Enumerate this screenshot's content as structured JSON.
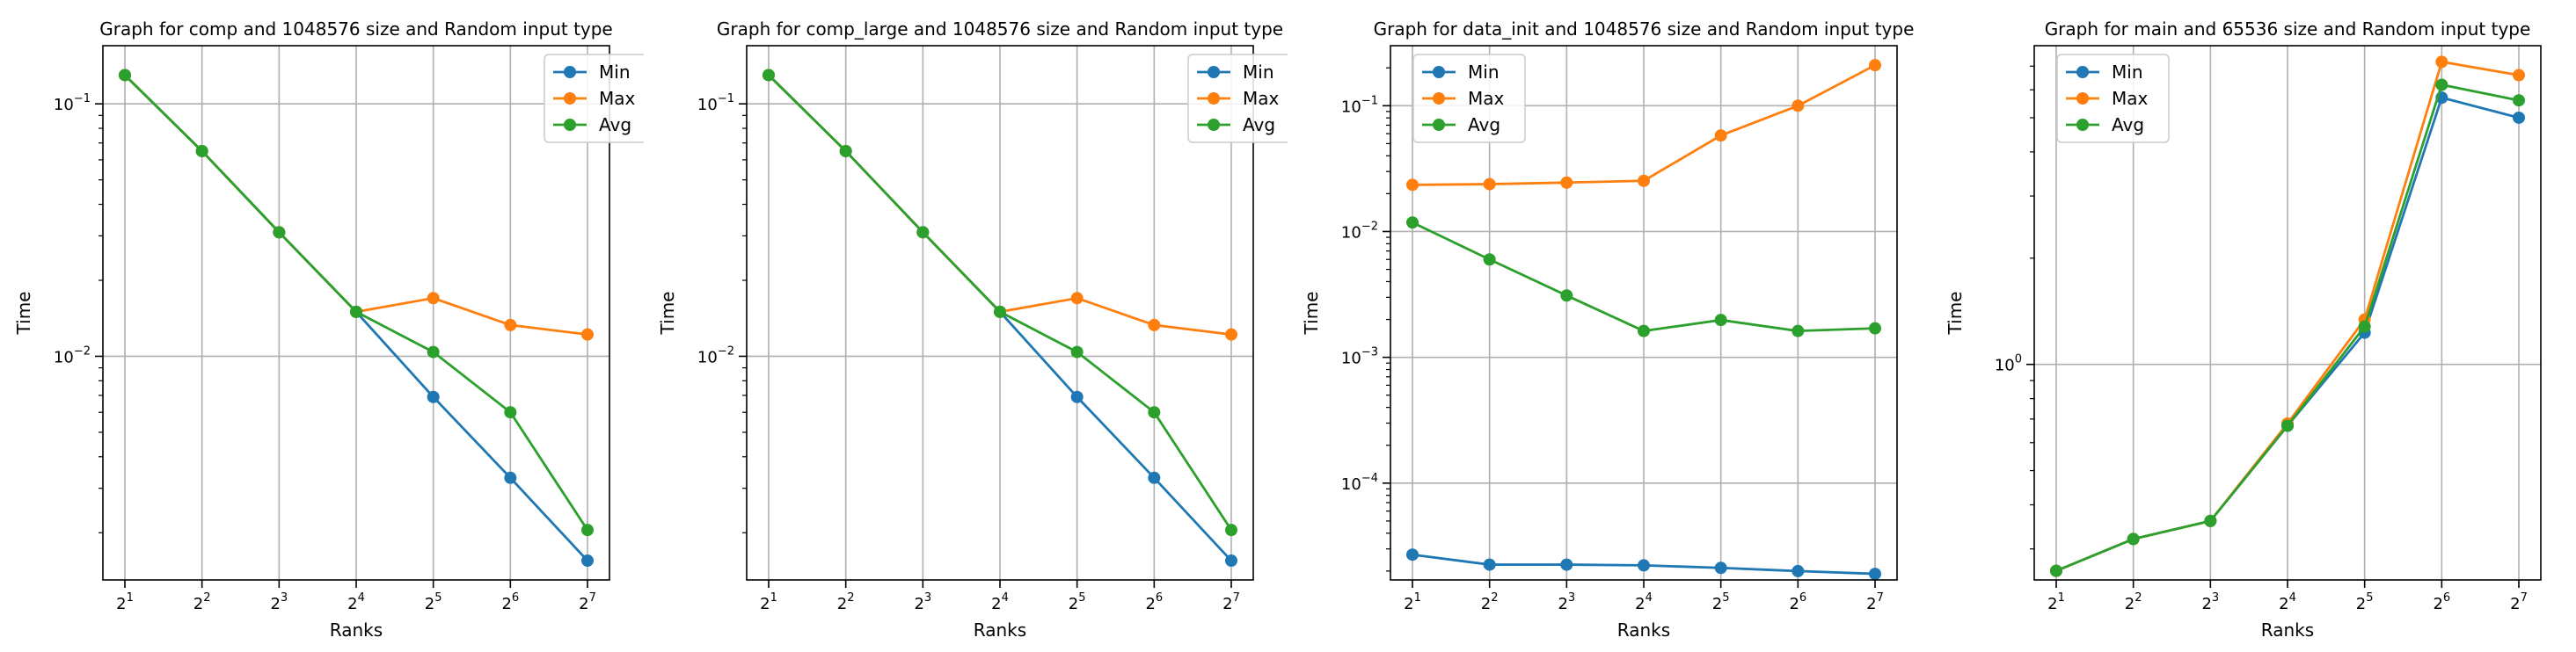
{
  "colors": {
    "min": "#1f77b4",
    "max": "#ff7f0e",
    "avg": "#2ca02c",
    "grid": "#b0b0b0"
  },
  "chart_data": [
    {
      "type": "line",
      "title": "Graph for comp and 1048576 size and Random input type",
      "xlabel": "Ranks",
      "ylabel": "Time",
      "yscale": "log",
      "ylim": [
        0.0013,
        0.17
      ],
      "grid": true,
      "legend_position": "top-right",
      "x": [
        2,
        4,
        8,
        16,
        32,
        64,
        128
      ],
      "x_tick_labels": [
        [
          "2",
          "1"
        ],
        [
          "2",
          "2"
        ],
        [
          "2",
          "3"
        ],
        [
          "2",
          "4"
        ],
        [
          "2",
          "5"
        ],
        [
          "2",
          "6"
        ],
        [
          "2",
          "7"
        ]
      ],
      "y_ticks": [
        {
          "value": 0.1,
          "base": "10",
          "exp": "−1"
        },
        {
          "value": 0.01,
          "base": "10",
          "exp": "−2"
        }
      ],
      "series": [
        {
          "name": "Min",
          "color_key": "min",
          "values": [
            0.13,
            0.065,
            0.031,
            0.015,
            0.0069,
            0.0033,
            0.00155
          ]
        },
        {
          "name": "Max",
          "color_key": "max",
          "values": [
            0.13,
            0.065,
            0.031,
            0.015,
            0.017,
            0.0133,
            0.0122
          ]
        },
        {
          "name": "Avg",
          "color_key": "avg",
          "values": [
            0.13,
            0.065,
            0.031,
            0.015,
            0.0104,
            0.006,
            0.00205
          ]
        }
      ]
    },
    {
      "type": "line",
      "title": "Graph for comp_large and 1048576 size and Random input type",
      "xlabel": "Ranks",
      "ylabel": "Time",
      "yscale": "log",
      "ylim": [
        0.0013,
        0.17
      ],
      "grid": true,
      "legend_position": "top-right",
      "x": [
        2,
        4,
        8,
        16,
        32,
        64,
        128
      ],
      "x_tick_labels": [
        [
          "2",
          "1"
        ],
        [
          "2",
          "2"
        ],
        [
          "2",
          "3"
        ],
        [
          "2",
          "4"
        ],
        [
          "2",
          "5"
        ],
        [
          "2",
          "6"
        ],
        [
          "2",
          "7"
        ]
      ],
      "y_ticks": [
        {
          "value": 0.1,
          "base": "10",
          "exp": "−1"
        },
        {
          "value": 0.01,
          "base": "10",
          "exp": "−2"
        }
      ],
      "series": [
        {
          "name": "Min",
          "color_key": "min",
          "values": [
            0.13,
            0.065,
            0.031,
            0.015,
            0.0069,
            0.0033,
            0.00155
          ]
        },
        {
          "name": "Max",
          "color_key": "max",
          "values": [
            0.13,
            0.065,
            0.031,
            0.015,
            0.017,
            0.0133,
            0.0122
          ]
        },
        {
          "name": "Avg",
          "color_key": "avg",
          "values": [
            0.13,
            0.065,
            0.031,
            0.015,
            0.0104,
            0.006,
            0.00205
          ]
        }
      ]
    },
    {
      "type": "line",
      "title": "Graph for data_init and 1048576 size and Random input type",
      "xlabel": "Ranks",
      "ylabel": "Time",
      "yscale": "log",
      "ylim": [
        1.7e-05,
        0.3
      ],
      "grid": true,
      "legend_position": "top-left",
      "x": [
        2,
        4,
        8,
        16,
        32,
        64,
        128
      ],
      "x_tick_labels": [
        [
          "2",
          "1"
        ],
        [
          "2",
          "2"
        ],
        [
          "2",
          "3"
        ],
        [
          "2",
          "4"
        ],
        [
          "2",
          "5"
        ],
        [
          "2",
          "6"
        ],
        [
          "2",
          "7"
        ]
      ],
      "y_ticks": [
        {
          "value": 0.1,
          "base": "10",
          "exp": "−1"
        },
        {
          "value": 0.01,
          "base": "10",
          "exp": "−2"
        },
        {
          "value": 0.001,
          "base": "10",
          "exp": "−3"
        },
        {
          "value": 0.0001,
          "base": "10",
          "exp": "−4"
        }
      ],
      "series": [
        {
          "name": "Min",
          "color_key": "min",
          "values": [
            2.7e-05,
            2.25e-05,
            2.25e-05,
            2.22e-05,
            2.12e-05,
            2e-05,
            1.9e-05
          ]
        },
        {
          "name": "Max",
          "color_key": "max",
          "values": [
            0.0235,
            0.0238,
            0.0245,
            0.0253,
            0.058,
            0.1,
            0.21
          ]
        },
        {
          "name": "Avg",
          "color_key": "avg",
          "values": [
            0.0118,
            0.006,
            0.0031,
            0.00162,
            0.00198,
            0.00162,
            0.0017
          ]
        }
      ]
    },
    {
      "type": "line",
      "title": "Graph for main and 65536 size and Random input type",
      "xlabel": "Ranks",
      "ylabel": "Time",
      "yscale": "log",
      "ylim": [
        0.245,
        8.0
      ],
      "grid": true,
      "legend_position": "top-left",
      "x": [
        2,
        4,
        8,
        16,
        32,
        64,
        128
      ],
      "x_tick_labels": [
        [
          "2",
          "1"
        ],
        [
          "2",
          "2"
        ],
        [
          "2",
          "3"
        ],
        [
          "2",
          "4"
        ],
        [
          "2",
          "5"
        ],
        [
          "2",
          "6"
        ],
        [
          "2",
          "7"
        ]
      ],
      "y_ticks": [
        {
          "value": 1.0,
          "base": "10",
          "exp": "0"
        }
      ],
      "series": [
        {
          "name": "Min",
          "color_key": "min",
          "values": [
            0.26,
            0.32,
            0.36,
            0.67,
            1.23,
            5.7,
            5.0
          ]
        },
        {
          "name": "Max",
          "color_key": "max",
          "values": [
            0.26,
            0.32,
            0.36,
            0.68,
            1.34,
            7.2,
            6.6
          ]
        },
        {
          "name": "Avg",
          "color_key": "avg",
          "values": [
            0.26,
            0.32,
            0.36,
            0.67,
            1.28,
            6.2,
            5.6
          ]
        }
      ]
    }
  ]
}
